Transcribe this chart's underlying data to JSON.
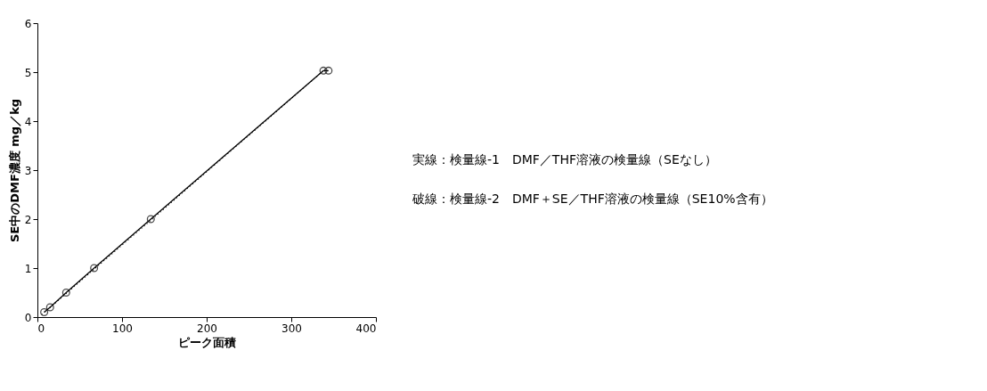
{
  "chart_data": {
    "type": "line",
    "xlabel": "ピーク面積",
    "ylabel": "SE中のDMF濃度 mg／kg",
    "xlim": [
      0,
      400
    ],
    "xticks": [
      0,
      100,
      200,
      300,
      400
    ],
    "ylim": [
      0,
      6
    ],
    "yticks": [
      0,
      1,
      2,
      3,
      4,
      5,
      6
    ],
    "grid": false,
    "series": [
      {
        "color": "#000000",
        "marker": "circle",
        "line_style": "solid",
        "x": [
          8,
          15,
          34,
          67,
          134,
          338,
          344
        ],
        "values": [
          0.1,
          0.2,
          0.5,
          1.0,
          2.0,
          5.03,
          5.03
        ]
      },
      {
        "color": "#000000",
        "marker": "none",
        "line_style": "dotted",
        "x": [
          5,
          340
        ],
        "values": [
          0.05,
          5.06
        ]
      }
    ],
    "annotations": [
      "実線：検量線-1　DMF／THF溶液の検量線（SEなし）",
      "破線：検量線-2　DMF＋SE／THF溶液の検量線（SE10%含有）"
    ]
  }
}
